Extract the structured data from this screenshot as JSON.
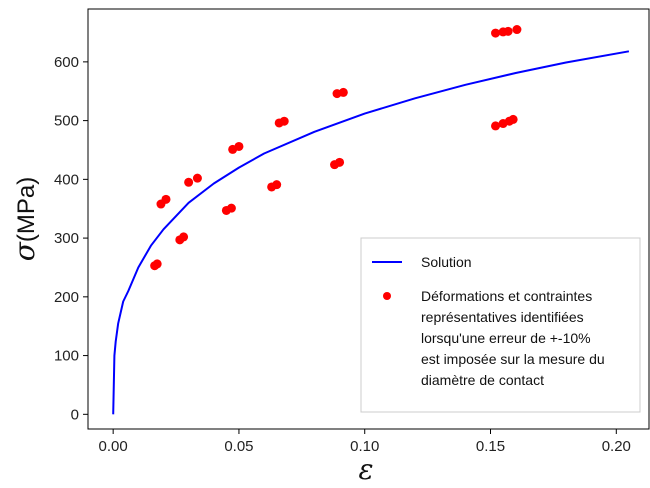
{
  "chart_data": {
    "type": "scatter",
    "xlabel": "ε",
    "ylabel_symbol": "σ",
    "ylabel_unit": "(MPa)",
    "xlim": [
      -0.01,
      0.213
    ],
    "ylim": [
      -25,
      690
    ],
    "x_ticks": [
      0.0,
      0.05,
      0.1,
      0.15,
      0.2
    ],
    "x_tick_labels": [
      "0.00",
      "0.05",
      "0.10",
      "0.15",
      "0.20"
    ],
    "y_ticks": [
      0,
      100,
      200,
      300,
      400,
      500,
      600
    ],
    "y_tick_labels": [
      "0",
      "100",
      "200",
      "300",
      "400",
      "500",
      "600"
    ],
    "grid": false,
    "legend_position": "lower-right",
    "series": [
      {
        "name": "Solution",
        "kind": "line",
        "color": "#0000ff",
        "x": [
          0.0,
          0.0005,
          0.001,
          0.002,
          0.004,
          0.006,
          0.01,
          0.015,
          0.02,
          0.03,
          0.04,
          0.05,
          0.06,
          0.08,
          0.1,
          0.12,
          0.14,
          0.16,
          0.18,
          0.205
        ],
        "y": [
          0,
          100,
          124,
          155,
          192,
          210,
          250,
          287,
          315,
          360,
          393,
          420,
          444,
          481,
          512,
          538,
          561,
          581,
          599,
          618
        ]
      },
      {
        "name": "Déformations et contraintes représentatives identifiées lorsqu'une erreur de +-10% est imposée sur la mesure du diamètre de contact",
        "legend_lines": [
          "Déformations et contraintes",
          "représentatives identifiées",
          "lorsqu'une erreur de +-10%",
          "est imposée sur la mesure du",
          "diamètre de contact"
        ],
        "kind": "scatter",
        "color": "#ff0000",
        "points": [
          {
            "x": 0.0165,
            "y": 253
          },
          {
            "x": 0.0175,
            "y": 256
          },
          {
            "x": 0.019,
            "y": 358
          },
          {
            "x": 0.021,
            "y": 366
          },
          {
            "x": 0.0265,
            "y": 297
          },
          {
            "x": 0.028,
            "y": 302
          },
          {
            "x": 0.03,
            "y": 395
          },
          {
            "x": 0.0335,
            "y": 402
          },
          {
            "x": 0.045,
            "y": 347
          },
          {
            "x": 0.047,
            "y": 351
          },
          {
            "x": 0.0475,
            "y": 451
          },
          {
            "x": 0.05,
            "y": 456
          },
          {
            "x": 0.063,
            "y": 387
          },
          {
            "x": 0.065,
            "y": 391
          },
          {
            "x": 0.066,
            "y": 496
          },
          {
            "x": 0.068,
            "y": 499
          },
          {
            "x": 0.088,
            "y": 425
          },
          {
            "x": 0.09,
            "y": 429
          },
          {
            "x": 0.089,
            "y": 546
          },
          {
            "x": 0.0915,
            "y": 548
          },
          {
            "x": 0.152,
            "y": 491
          },
          {
            "x": 0.155,
            "y": 495
          },
          {
            "x": 0.1575,
            "y": 499
          },
          {
            "x": 0.159,
            "y": 502
          },
          {
            "x": 0.152,
            "y": 649
          },
          {
            "x": 0.155,
            "y": 651
          },
          {
            "x": 0.157,
            "y": 652
          },
          {
            "x": 0.1605,
            "y": 655
          }
        ]
      }
    ]
  }
}
